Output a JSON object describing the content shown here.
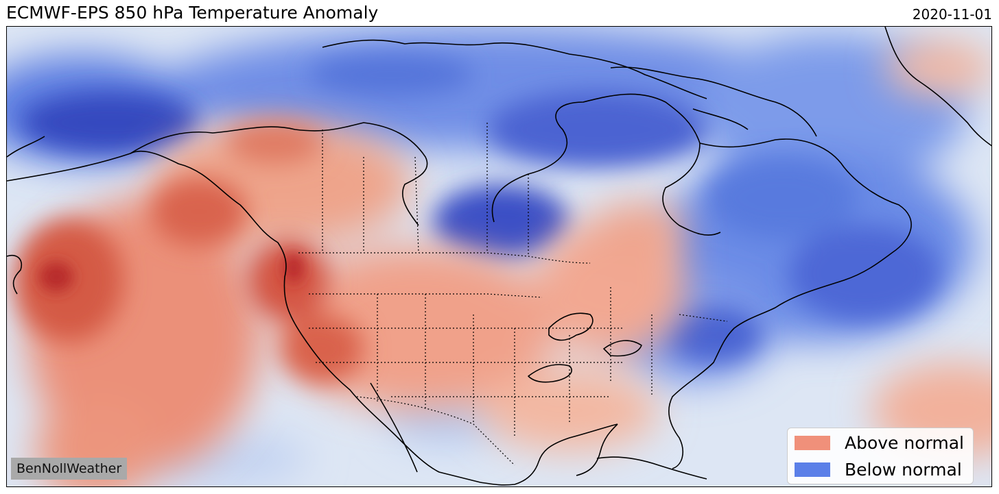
{
  "header": {
    "title": "ECMWF-EPS 850 hPa Temperature Anomaly",
    "date": "2020-11-01"
  },
  "credit": "BenNollWeather",
  "legend": {
    "items": [
      {
        "label": "Above normal",
        "color": "#f0907a"
      },
      {
        "label": "Below normal",
        "color": "#5b7fe8"
      }
    ]
  },
  "colors": {
    "ocean_base": "#dfe8f5",
    "strong_warm": "#c0302a",
    "warm": "#e8735a",
    "light_warm": "#f3b9a3",
    "strong_cold": "#3a4fc4",
    "cold": "#6a8de8",
    "light_cold": "#b9cdf2",
    "coastline": "#000000"
  }
}
